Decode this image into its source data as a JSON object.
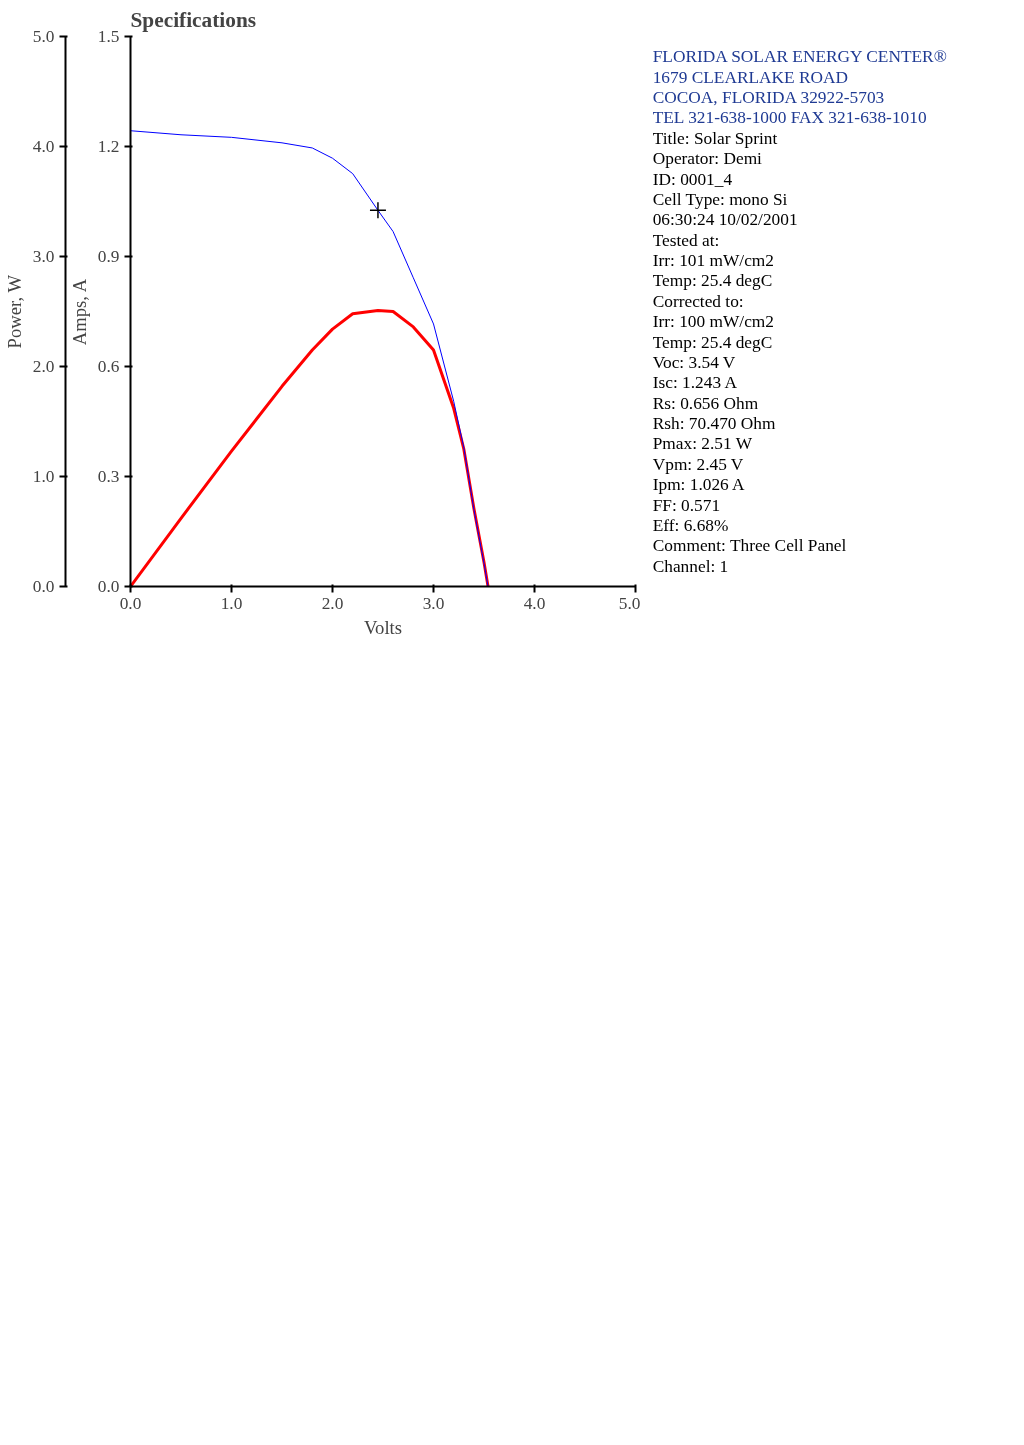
{
  "chart_data": {
    "type": "line",
    "title": "Specifications",
    "xlabel": "Volts",
    "ylabel": "Amps, A",
    "y2label": "Power, W",
    "x": [
      0,
      0.5,
      1.0,
      1.5,
      1.8,
      2.0,
      2.2,
      2.45,
      2.6,
      2.8,
      3.0,
      3.2,
      3.3,
      3.4,
      3.5,
      3.54
    ],
    "series": [
      {
        "color": "#ff0000",
        "axis": "y2",
        "values": [
          0,
          0.62,
          1.23,
          1.82,
          2.15,
          2.34,
          2.48,
          2.51,
          2.5,
          2.36,
          2.15,
          1.62,
          1.25,
          0.71,
          0.22,
          0
        ]
      },
      {
        "color": "#0000ff",
        "values": [
          1.243,
          1.232,
          1.225,
          1.21,
          1.196,
          1.168,
          1.126,
          1.026,
          0.968,
          0.842,
          0.716,
          0.505,
          0.379,
          0.21,
          0.063,
          0
        ]
      },
      {
        "type": "scatter",
        "marker": "cross",
        "color": "#000000",
        "x": [
          2.45
        ],
        "values": [
          1.026
        ]
      }
    ],
    "xlim": [
      0,
      5
    ],
    "ylim": [
      0,
      1.5
    ],
    "y2lim": [
      0,
      5
    ],
    "xticks": [
      {
        "value": 0,
        "label": "0.0"
      },
      {
        "value": 1,
        "label": "1.0"
      },
      {
        "value": 2,
        "label": "2.0"
      },
      {
        "value": 3,
        "label": "3.0"
      },
      {
        "value": 4,
        "label": "4.0"
      },
      {
        "value": 5,
        "label": "5.0"
      }
    ],
    "yticks": [
      {
        "value": 0,
        "label": "0.0"
      },
      0.3,
      0.6,
      0.9,
      1.2,
      1.5
    ],
    "y2ticks": [
      {
        "value": 0,
        "label": "0.0"
      },
      {
        "value": 1,
        "label": "1.0"
      },
      {
        "value": 2,
        "label": "2.0"
      },
      {
        "value": 3,
        "label": "3.0"
      },
      {
        "value": 4,
        "label": "4.0"
      },
      {
        "value": 5,
        "label": "5.0"
      }
    ],
    "grid": false,
    "annotations": [
      "FLORIDA SOLAR ENERGY CENTER®",
      "1679 CLEARLAKE ROAD",
      "COCOA, FLORIDA 32922-5703",
      "TEL 321-638-1000 FAX 321-638-1010",
      "Title: Solar Sprint",
      "Operator: Demi",
      "ID: 0001_4",
      "Cell Type: mono Si",
      "06:30:24 10/02/2001",
      "Tested at:",
      "Irr: 101 mW/cm2",
      "Temp: 25.4 degC",
      "Corrected to:",
      "Irr: 100 mW/cm2",
      "Temp: 25.4 degC",
      "Voc: 3.54 V",
      "Isc: 1.243 A",
      "Rs: 0.656 Ohm",
      "Rsh: 70.470 Ohm",
      "Pmax: 2.51 W",
      "Vpm: 2.45 V",
      "Ipm: 1.026 A",
      "FF: 0.571",
      "Eff: 6.68%",
      "Comment: Three Cell Panel",
      "Channel: 1"
    ]
  }
}
